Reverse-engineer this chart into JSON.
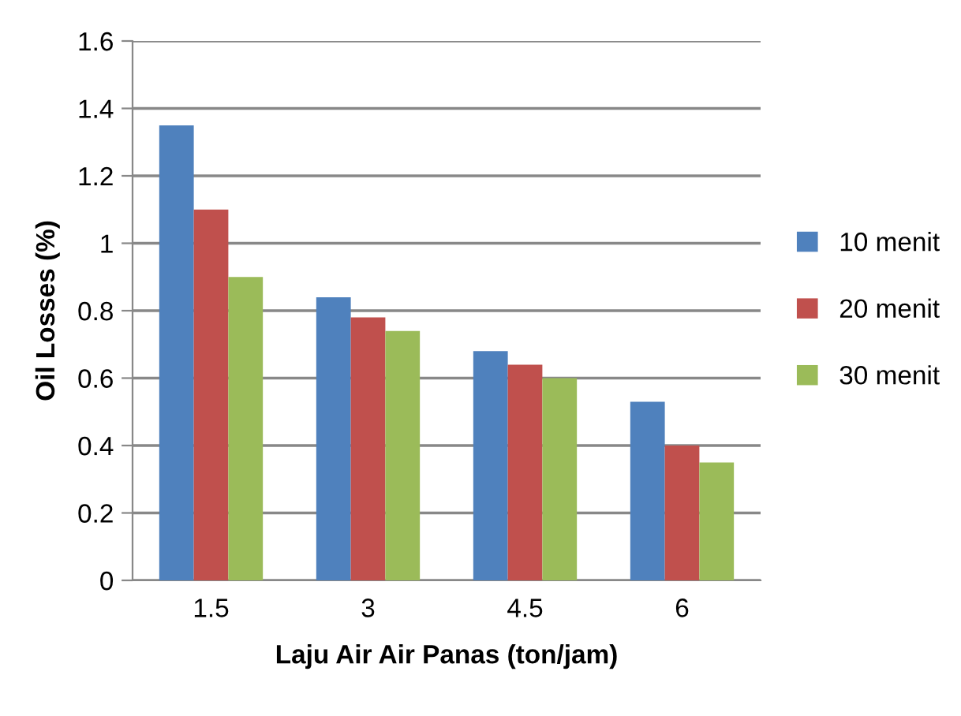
{
  "chart_data": {
    "type": "bar",
    "xlabel": "Laju Air Air Panas (ton/jam)",
    "ylabel": "Oil Losses (%)",
    "categories": [
      "1.5",
      "3",
      "4.5",
      "6"
    ],
    "series": [
      {
        "name": "10 menit",
        "color": "#4f81bd",
        "values": [
          1.35,
          0.84,
          0.68,
          0.53
        ]
      },
      {
        "name": "20 menit",
        "color": "#c0504d",
        "values": [
          1.1,
          0.78,
          0.64,
          0.4
        ]
      },
      {
        "name": "30 menit",
        "color": "#9bbb59",
        "values": [
          0.9,
          0.74,
          0.6,
          0.35
        ]
      }
    ],
    "ylim": [
      0,
      1.6
    ],
    "yticks": [
      0,
      0.2,
      0.4,
      0.6,
      0.8,
      1,
      1.2,
      1.4,
      1.6
    ],
    "grid": "y",
    "legend": "right"
  }
}
